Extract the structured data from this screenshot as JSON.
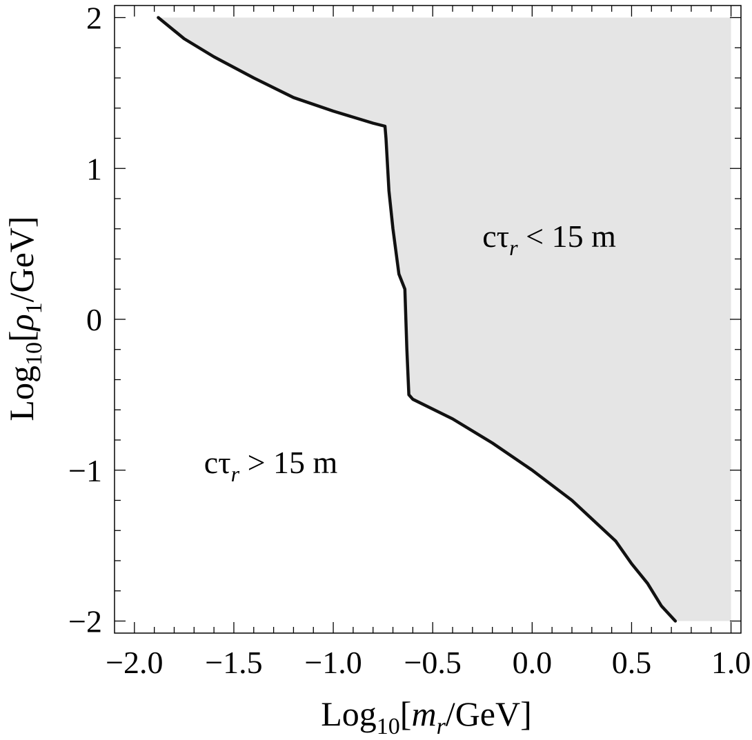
{
  "chart_data": {
    "type": "area",
    "xlabel": {
      "prefix": "Log",
      "sub": "10",
      "open": "[",
      "var": "m",
      "var_sub": "r",
      "unit": "/GeV]"
    },
    "ylabel": {
      "prefix": "Log",
      "sub": "10",
      "open": "[",
      "var": "ρ",
      "var_sub": "1",
      "unit": "/GeV]"
    },
    "xlim": [
      -2.1,
      1.05
    ],
    "ylim": [
      -2.08,
      2.08
    ],
    "x_ticks": [
      -2.0,
      -1.5,
      -1.0,
      -0.5,
      0.0,
      0.5,
      1.0
    ],
    "x_tick_labels": [
      "−2.0",
      "−1.5",
      "−1.0",
      "−0.5",
      "0.0",
      "0.5",
      "1.0"
    ],
    "y_ticks": [
      -2,
      -1,
      0,
      1,
      2
    ],
    "y_tick_labels": [
      "−2",
      "−1",
      "0",
      "1",
      "2"
    ],
    "grid": false,
    "shaded_region": {
      "fill": "#e5e5e5",
      "x_max": 1.0,
      "y_min": -2.0,
      "y_max": 2.0
    },
    "boundary_color": "#111111",
    "boundary": [
      [
        -1.88,
        2.0
      ],
      [
        -1.75,
        1.86
      ],
      [
        -1.6,
        1.74
      ],
      [
        -1.4,
        1.6
      ],
      [
        -1.2,
        1.47
      ],
      [
        -1.0,
        1.38
      ],
      [
        -0.8,
        1.3
      ],
      [
        -0.74,
        1.28
      ],
      [
        -0.735,
        1.2
      ],
      [
        -0.72,
        0.85
      ],
      [
        -0.7,
        0.6
      ],
      [
        -0.67,
        0.3
      ],
      [
        -0.64,
        0.2
      ],
      [
        -0.63,
        -0.2
      ],
      [
        -0.62,
        -0.5
      ],
      [
        -0.6,
        -0.53
      ],
      [
        -0.4,
        -0.66
      ],
      [
        -0.2,
        -0.82
      ],
      [
        0.0,
        -1.0
      ],
      [
        0.2,
        -1.2
      ],
      [
        0.42,
        -1.47
      ],
      [
        0.5,
        -1.62
      ],
      [
        0.58,
        -1.75
      ],
      [
        0.65,
        -1.9
      ],
      [
        0.72,
        -2.0
      ]
    ],
    "annotations": [
      {
        "name": "short-lifetime",
        "x": -0.25,
        "y": 0.48,
        "prefix": "cτ",
        "sub": "r",
        "suffix": " < 15 m"
      },
      {
        "name": "long-lifetime",
        "x": -1.65,
        "y": -1.02,
        "prefix": "cτ",
        "sub": "r",
        "suffix": " > 15 m"
      }
    ]
  }
}
